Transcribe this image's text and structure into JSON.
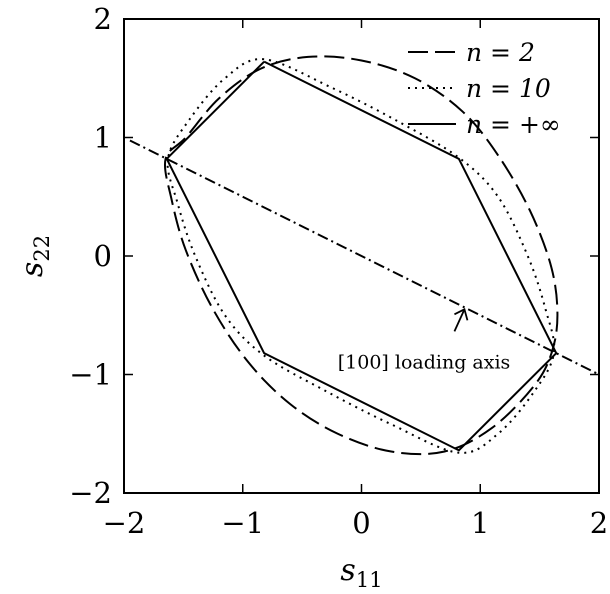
{
  "chart_data": {
    "type": "line",
    "title": "",
    "xlabel": "s",
    "xlabel_sub": "11",
    "ylabel": "s",
    "ylabel_sub": "22",
    "xlim": [
      -2,
      2
    ],
    "ylim": [
      -2,
      2
    ],
    "xticks": [
      -2,
      -1,
      0,
      1,
      2
    ],
    "yticks": [
      -2,
      -1,
      0,
      1,
      2
    ],
    "xtick_labels": [
      "−2",
      "−1",
      "0",
      "1",
      "2"
    ],
    "ytick_labels": [
      "−2",
      "−1",
      "0",
      "1",
      "2"
    ],
    "grid": false,
    "legend_position": "top-right",
    "series": [
      {
        "name": "n = 2",
        "style": "dashed",
        "points": [
          [
            -1.65,
            0.82
          ],
          [
            -1.6,
            0.48
          ],
          [
            -1.48,
            0.05
          ],
          [
            -1.25,
            -0.45
          ],
          [
            -0.95,
            -0.9
          ],
          [
            -0.6,
            -1.25
          ],
          [
            -0.2,
            -1.5
          ],
          [
            0.25,
            -1.65
          ],
          [
            0.7,
            -1.65
          ],
          [
            1.1,
            -1.45
          ],
          [
            1.45,
            -1.1
          ],
          [
            1.6,
            -0.82
          ],
          [
            1.65,
            -0.5
          ],
          [
            1.6,
            -0.1
          ],
          [
            1.42,
            0.38
          ],
          [
            1.15,
            0.85
          ],
          [
            0.85,
            1.22
          ],
          [
            0.45,
            1.5
          ],
          [
            0.0,
            1.65
          ],
          [
            -0.45,
            1.68
          ],
          [
            -0.85,
            1.58
          ],
          [
            -1.2,
            1.33
          ],
          [
            -1.48,
            1.0
          ],
          [
            -1.65,
            0.82
          ]
        ]
      },
      {
        "name": "n = 10",
        "style": "dotted",
        "points": [
          [
            -1.63,
            0.82
          ],
          [
            -1.55,
            0.45
          ],
          [
            -1.4,
            0.0
          ],
          [
            -1.15,
            -0.5
          ],
          [
            -0.82,
            -0.84
          ],
          [
            -0.3,
            -1.14
          ],
          [
            0.25,
            -1.42
          ],
          [
            0.82,
            -1.66
          ],
          [
            1.15,
            -1.5
          ],
          [
            1.45,
            -1.15
          ],
          [
            1.62,
            -0.82
          ],
          [
            1.55,
            -0.45
          ],
          [
            1.4,
            0.0
          ],
          [
            1.15,
            0.5
          ],
          [
            0.82,
            0.83
          ],
          [
            0.3,
            1.14
          ],
          [
            -0.25,
            1.42
          ],
          [
            -0.82,
            1.66
          ],
          [
            -1.15,
            1.5
          ],
          [
            -1.45,
            1.15
          ],
          [
            -1.63,
            0.82
          ]
        ]
      },
      {
        "name": "n = +∞",
        "style": "solid",
        "points": [
          [
            -0.82,
            1.64
          ],
          [
            0.82,
            0.82
          ],
          [
            1.64,
            -0.82
          ],
          [
            0.82,
            -1.64
          ],
          [
            -0.82,
            -0.82
          ],
          [
            -1.64,
            0.82
          ],
          [
            -0.82,
            1.64
          ]
        ]
      }
    ],
    "reference_line": {
      "name": "[100] loading axis",
      "style": "dash-dot",
      "points": [
        [
          -1.95,
          0.975
        ],
        [
          2.0,
          -1.0
        ]
      ]
    },
    "annotation": {
      "text": "[100] loading axis",
      "at": [
        -0.2,
        -0.95
      ],
      "arrow_to": [
        0.85,
        -0.45
      ]
    }
  }
}
